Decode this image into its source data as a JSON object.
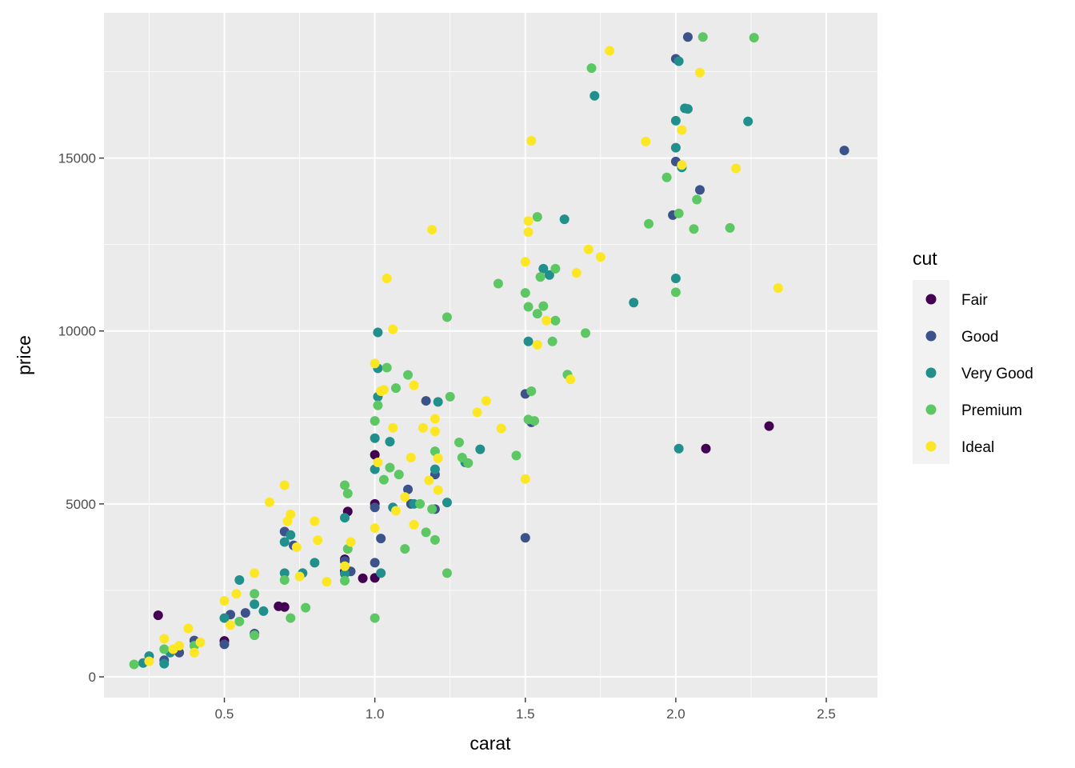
{
  "chart_data": {
    "type": "scatter",
    "title": "",
    "xlabel": "carat",
    "ylabel": "price",
    "xlim": [
      0.1,
      2.67
    ],
    "ylim": [
      -600,
      19200
    ],
    "x_ticks": [
      0.5,
      1.0,
      1.5,
      2.0,
      2.5
    ],
    "x_tick_labels": [
      "0.5",
      "1.0",
      "1.5",
      "2.0",
      "2.5"
    ],
    "y_ticks": [
      0,
      5000,
      10000,
      15000
    ],
    "y_tick_labels": [
      "0",
      "5000",
      "10000",
      "15000"
    ],
    "grid": true,
    "legend": {
      "title": "cut",
      "position": "right"
    },
    "series": [
      {
        "name": "Fair",
        "color": "#440154",
        "points": [
          [
            0.28,
            1780
          ],
          [
            0.5,
            1040
          ],
          [
            0.68,
            2040
          ],
          [
            0.7,
            2020
          ],
          [
            0.9,
            3050
          ],
          [
            0.91,
            4780
          ],
          [
            0.96,
            2850
          ],
          [
            1.0,
            2860
          ],
          [
            1.0,
            6420
          ],
          [
            1.0,
            5000
          ],
          [
            2.1,
            6600
          ],
          [
            2.31,
            7250
          ],
          [
            0.9,
            3400
          ]
        ]
      },
      {
        "name": "Good",
        "color": "#3B528B",
        "points": [
          [
            0.3,
            480
          ],
          [
            0.35,
            700
          ],
          [
            0.4,
            1050
          ],
          [
            0.5,
            940
          ],
          [
            0.52,
            1800
          ],
          [
            0.57,
            1850
          ],
          [
            0.6,
            1250
          ],
          [
            0.7,
            4200
          ],
          [
            0.73,
            3800
          ],
          [
            0.9,
            3350
          ],
          [
            0.92,
            3050
          ],
          [
            1.0,
            3300
          ],
          [
            1.0,
            4900
          ],
          [
            1.02,
            4000
          ],
          [
            1.11,
            5420
          ],
          [
            1.12,
            5000
          ],
          [
            1.17,
            7980
          ],
          [
            1.2,
            5850
          ],
          [
            1.2,
            4850
          ],
          [
            1.5,
            4020
          ],
          [
            1.5,
            8180
          ],
          [
            1.52,
            7360
          ],
          [
            1.99,
            13350
          ],
          [
            2.0,
            14900
          ],
          [
            2.0,
            17870
          ],
          [
            2.04,
            18500
          ],
          [
            2.08,
            14080
          ],
          [
            2.56,
            15220
          ]
        ]
      },
      {
        "name": "Very Good",
        "color": "#21908C",
        "points": [
          [
            0.23,
            400
          ],
          [
            0.25,
            600
          ],
          [
            0.3,
            380
          ],
          [
            0.32,
            700
          ],
          [
            0.5,
            1700
          ],
          [
            0.55,
            2800
          ],
          [
            0.6,
            2100
          ],
          [
            0.63,
            1900
          ],
          [
            0.7,
            3900
          ],
          [
            0.7,
            3000
          ],
          [
            0.72,
            4100
          ],
          [
            0.76,
            3000
          ],
          [
            0.8,
            3300
          ],
          [
            0.9,
            2980
          ],
          [
            0.9,
            4600
          ],
          [
            1.0,
            6000
          ],
          [
            1.0,
            6900
          ],
          [
            1.01,
            8920
          ],
          [
            1.01,
            8100
          ],
          [
            1.01,
            9960
          ],
          [
            1.05,
            6800
          ],
          [
            1.06,
            4900
          ],
          [
            1.02,
            3000
          ],
          [
            1.13,
            5000
          ],
          [
            1.2,
            6000
          ],
          [
            1.21,
            7950
          ],
          [
            1.24,
            5040
          ],
          [
            1.3,
            6200
          ],
          [
            1.35,
            6580
          ],
          [
            1.51,
            9700
          ],
          [
            1.56,
            11800
          ],
          [
            1.58,
            11620
          ],
          [
            1.63,
            13230
          ],
          [
            1.73,
            16800
          ],
          [
            1.86,
            10820
          ],
          [
            2.0,
            11520
          ],
          [
            2.0,
            15300
          ],
          [
            2.0,
            16080
          ],
          [
            2.01,
            17800
          ],
          [
            2.01,
            6600
          ],
          [
            2.02,
            14730
          ],
          [
            2.03,
            16440
          ],
          [
            2.04,
            16420
          ],
          [
            2.24,
            16060
          ]
        ]
      },
      {
        "name": "Premium",
        "color": "#5DC863",
        "points": [
          [
            0.2,
            360
          ],
          [
            0.3,
            800
          ],
          [
            0.4,
            900
          ],
          [
            0.55,
            1600
          ],
          [
            0.6,
            2400
          ],
          [
            0.6,
            1200
          ],
          [
            0.7,
            2800
          ],
          [
            0.72,
            1700
          ],
          [
            0.77,
            2000
          ],
          [
            0.9,
            5540
          ],
          [
            0.91,
            5300
          ],
          [
            0.9,
            2780
          ],
          [
            0.91,
            3700
          ],
          [
            1.0,
            1700
          ],
          [
            1.0,
            7400
          ],
          [
            1.01,
            7850
          ],
          [
            1.03,
            5700
          ],
          [
            1.04,
            8940
          ],
          [
            1.05,
            6050
          ],
          [
            1.07,
            8350
          ],
          [
            1.08,
            5850
          ],
          [
            1.1,
            3700
          ],
          [
            1.11,
            8730
          ],
          [
            1.15,
            5000
          ],
          [
            1.17,
            4180
          ],
          [
            1.19,
            4850
          ],
          [
            1.2,
            3960
          ],
          [
            1.2,
            6520
          ],
          [
            1.24,
            3000
          ],
          [
            1.24,
            10400
          ],
          [
            1.25,
            8100
          ],
          [
            1.28,
            6780
          ],
          [
            1.29,
            6340
          ],
          [
            1.31,
            6180
          ],
          [
            1.41,
            11370
          ],
          [
            1.47,
            6400
          ],
          [
            1.5,
            11100
          ],
          [
            1.51,
            10700
          ],
          [
            1.51,
            7440
          ],
          [
            1.52,
            8260
          ],
          [
            1.53,
            7400
          ],
          [
            1.54,
            10500
          ],
          [
            1.54,
            13300
          ],
          [
            1.55,
            11560
          ],
          [
            1.56,
            10720
          ],
          [
            1.59,
            9700
          ],
          [
            1.6,
            11800
          ],
          [
            1.6,
            10300
          ],
          [
            1.64,
            8740
          ],
          [
            1.7,
            9940
          ],
          [
            1.72,
            17600
          ],
          [
            1.91,
            13100
          ],
          [
            1.97,
            14440
          ],
          [
            2.0,
            11120
          ],
          [
            2.01,
            13400
          ],
          [
            2.06,
            12950
          ],
          [
            2.07,
            13800
          ],
          [
            2.09,
            18500
          ],
          [
            2.18,
            12980
          ],
          [
            2.26,
            18480
          ]
        ]
      },
      {
        "name": "Ideal",
        "color": "#FDE725",
        "points": [
          [
            0.25,
            450
          ],
          [
            0.3,
            1100
          ],
          [
            0.33,
            800
          ],
          [
            0.35,
            900
          ],
          [
            0.38,
            1400
          ],
          [
            0.4,
            700
          ],
          [
            0.42,
            1000
          ],
          [
            0.5,
            2200
          ],
          [
            0.52,
            1500
          ],
          [
            0.54,
            2400
          ],
          [
            0.6,
            3000
          ],
          [
            0.65,
            5050
          ],
          [
            0.7,
            5540
          ],
          [
            0.71,
            4500
          ],
          [
            0.72,
            4700
          ],
          [
            0.74,
            3750
          ],
          [
            0.75,
            2900
          ],
          [
            0.8,
            4500
          ],
          [
            0.81,
            3950
          ],
          [
            0.84,
            2750
          ],
          [
            0.9,
            3200
          ],
          [
            0.92,
            3900
          ],
          [
            1.0,
            9060
          ],
          [
            1.01,
            6200
          ],
          [
            1.0,
            4300
          ],
          [
            1.02,
            8260
          ],
          [
            1.03,
            8300
          ],
          [
            1.04,
            11520
          ],
          [
            1.06,
            10050
          ],
          [
            1.06,
            7200
          ],
          [
            1.07,
            4800
          ],
          [
            1.1,
            5200
          ],
          [
            1.12,
            6340
          ],
          [
            1.13,
            8430
          ],
          [
            1.13,
            4400
          ],
          [
            1.16,
            7200
          ],
          [
            1.18,
            5680
          ],
          [
            1.19,
            12930
          ],
          [
            1.2,
            7460
          ],
          [
            1.2,
            7100
          ],
          [
            1.21,
            6320
          ],
          [
            1.21,
            5400
          ],
          [
            1.34,
            7650
          ],
          [
            1.37,
            7980
          ],
          [
            1.42,
            7180
          ],
          [
            1.5,
            5720
          ],
          [
            1.5,
            12000
          ],
          [
            1.51,
            13180
          ],
          [
            1.51,
            12860
          ],
          [
            1.52,
            15500
          ],
          [
            1.54,
            9600
          ],
          [
            1.57,
            10300
          ],
          [
            1.65,
            8600
          ],
          [
            1.67,
            11680
          ],
          [
            1.71,
            12360
          ],
          [
            1.75,
            12140
          ],
          [
            1.78,
            18100
          ],
          [
            1.9,
            15480
          ],
          [
            2.02,
            15810
          ],
          [
            2.02,
            14800
          ],
          [
            2.08,
            17470
          ],
          [
            2.2,
            14700
          ],
          [
            2.34,
            11240
          ]
        ]
      }
    ]
  }
}
